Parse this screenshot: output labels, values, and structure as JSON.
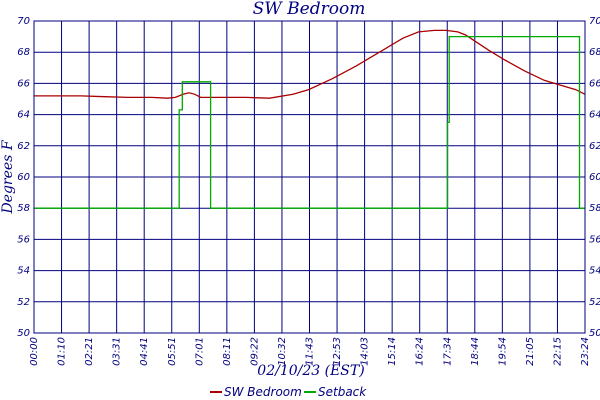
{
  "chart_data": {
    "type": "line",
    "title": "SW Bedroom",
    "xlabel": "02/10/23 (EST)",
    "ylabel": "Degrees F",
    "ylim": [
      50,
      70
    ],
    "y_ticks": [
      50,
      52,
      54,
      56,
      58,
      60,
      62,
      64,
      66,
      68,
      70
    ],
    "x_range_minutes": [
      0,
      1404
    ],
    "x_tick_labels": [
      "00:00",
      "01:10",
      "02:21",
      "03:31",
      "04:41",
      "05:51",
      "07:01",
      "08:11",
      "09:22",
      "10:32",
      "11:43",
      "12:53",
      "14:03",
      "15:14",
      "16:24",
      "17:34",
      "18:44",
      "19:54",
      "21:05",
      "22:15",
      "23:24"
    ],
    "grid": true,
    "legend_position": "bottom",
    "series": [
      {
        "name": "SW Bedroom",
        "color": "#aa0000",
        "x": [
          0,
          60,
          120,
          180,
          240,
          300,
          340,
          360,
          380,
          395,
          410,
          425,
          440,
          480,
          540,
          600,
          660,
          700,
          760,
          820,
          880,
          940,
          980,
          1020,
          1050,
          1080,
          1100,
          1130,
          1160,
          1200,
          1250,
          1300,
          1340,
          1380,
          1404
        ],
        "values": [
          65.2,
          65.2,
          65.2,
          65.15,
          65.1,
          65.1,
          65.05,
          65.1,
          65.3,
          65.4,
          65.3,
          65.1,
          65.1,
          65.1,
          65.1,
          65.05,
          65.3,
          65.6,
          66.3,
          67.1,
          68.0,
          68.9,
          69.3,
          69.4,
          69.4,
          69.3,
          69.1,
          68.6,
          68.1,
          67.5,
          66.8,
          66.2,
          65.9,
          65.6,
          65.3
        ]
      },
      {
        "name": "Setback",
        "color": "#00aa00",
        "x": [
          0,
          370,
          370,
          378,
          378,
          450,
          450,
          474,
          474,
          1054,
          1054,
          1058,
          1058,
          1089,
          1089,
          1390,
          1390,
          1404
        ],
        "values": [
          58,
          58,
          64.3,
          64.3,
          66.1,
          66.1,
          58,
          58,
          58,
          58,
          63.5,
          63.5,
          69.0,
          69.0,
          69.0,
          69.0,
          58,
          58
        ]
      }
    ]
  }
}
